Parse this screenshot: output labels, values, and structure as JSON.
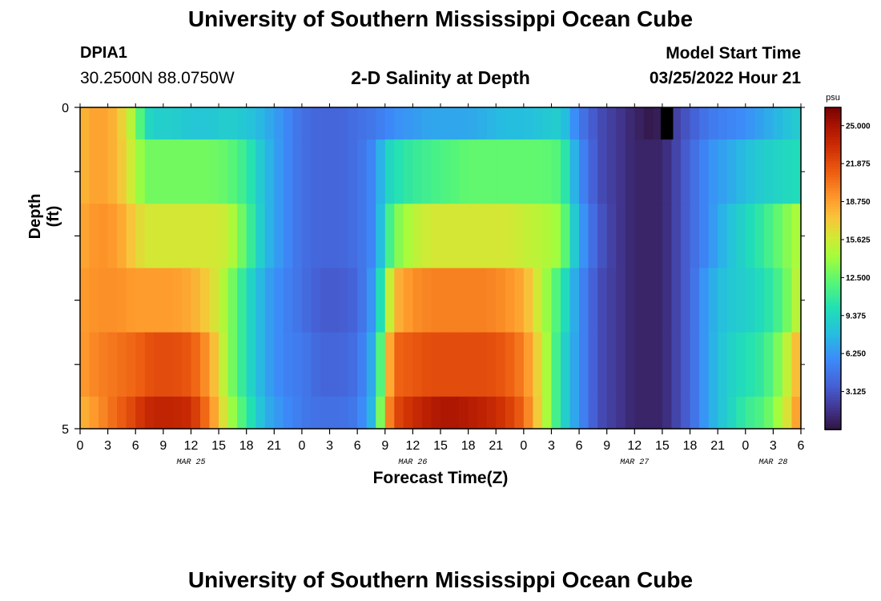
{
  "header": {
    "title": "University of Southern Mississippi Ocean Cube",
    "station_id": "DPIA1",
    "coordinates": "30.2500N  88.0750W",
    "subtitle": "2-D Salinity at Depth",
    "start_label": "Model Start Time",
    "start_value": "03/25/2022 Hour 21"
  },
  "footer": {
    "title": "University of Southern Mississippi Ocean Cube"
  },
  "chart_data": {
    "type": "heatmap",
    "title": "2-D Salinity at Depth",
    "xlabel": "Forecast Time(Z)",
    "ylabel": "Depth (ft)",
    "colorbar_unit": "psu",
    "colorbar_ticks": [
      "25.000",
      "21.875",
      "18.750",
      "15.625",
      "12.500",
      "9.375",
      "6.250",
      "3.125"
    ],
    "colorbar_range": [
      0,
      26.5
    ],
    "y_range": [
      0,
      5
    ],
    "y_ticks": [
      "0",
      "5"
    ],
    "x_tick_labels": [
      "0",
      "3",
      "6",
      "9",
      "12",
      "15",
      "18",
      "21",
      "0",
      "3",
      "6",
      "9",
      "12",
      "15",
      "18",
      "21",
      "0",
      "3",
      "6",
      "9",
      "12",
      "15",
      "18",
      "21",
      "0",
      "3",
      "6"
    ],
    "date_labels": [
      {
        "label": "MAR 25",
        "hour": 12
      },
      {
        "label": "MAR 26",
        "hour": 36
      },
      {
        "label": "MAR 27",
        "hour": 60
      },
      {
        "label": "MAR 28",
        "hour": 75
      }
    ],
    "x_hours": [
      0,
      78
    ],
    "depth_layers": [
      "0-0.5",
      "0.5-1.5",
      "1.5-2.5",
      "2.5-3.5",
      "3.5-4.5",
      "4.5-5"
    ],
    "hour_anchors": [
      0,
      2,
      4,
      6,
      7,
      8,
      10,
      12,
      14,
      16,
      18,
      20,
      22,
      24,
      26,
      28,
      30,
      32,
      33,
      34,
      36,
      38,
      40,
      42,
      44,
      46,
      48,
      50,
      52,
      54,
      56,
      58,
      60,
      62,
      63,
      64,
      66,
      68,
      70,
      72,
      74,
      76,
      78
    ],
    "salinity_by_layer": [
      [
        18,
        19,
        18,
        14,
        10,
        9,
        9,
        8.5,
        8.5,
        9,
        8.5,
        7.5,
        6,
        4.5,
        4,
        4,
        4.5,
        5,
        5.5,
        6,
        6.5,
        7,
        7,
        7,
        7.5,
        8,
        8,
        8.5,
        9,
        5,
        3,
        2,
        1,
        0.2,
        1,
        2,
        3.5,
        5,
        5.5,
        6,
        7,
        8,
        9
      ],
      [
        18,
        19,
        18,
        15,
        13,
        13,
        13,
        13,
        13,
        12.5,
        11,
        8,
        6,
        4.5,
        4,
        4,
        4.5,
        6,
        9,
        10,
        11,
        11.5,
        12,
        12.5,
        12.5,
        12.5,
        12.5,
        12.5,
        12,
        6,
        3,
        2,
        1,
        1,
        1,
        2,
        4,
        6,
        7,
        8,
        9,
        9.5,
        10
      ],
      [
        18.5,
        19.5,
        19,
        17,
        16,
        16,
        16,
        16,
        16,
        15.5,
        12,
        8,
        6,
        4.5,
        4,
        4,
        4.5,
        6,
        10,
        13,
        15,
        16,
        16,
        16,
        16,
        16,
        15.5,
        15,
        14,
        7,
        3.5,
        2,
        1,
        1,
        1,
        2,
        4,
        6,
        8,
        9.5,
        11,
        13,
        15
      ],
      [
        19,
        19.5,
        19.5,
        19,
        19,
        19,
        19,
        18.5,
        17,
        14,
        10,
        7,
        5.5,
        4.5,
        3.5,
        3.5,
        4,
        7,
        13,
        18,
        19.5,
        20,
        20,
        20,
        20,
        19.5,
        18.5,
        15,
        11,
        6,
        3,
        2,
        1,
        1,
        1,
        2,
        4,
        7,
        8.5,
        9,
        10,
        12,
        16
      ],
      [
        19,
        20,
        20.5,
        21,
        21.5,
        22,
        22,
        21.5,
        19,
        14,
        10,
        7,
        5.5,
        5,
        4,
        4,
        4.5,
        8,
        16,
        21,
        21.5,
        22,
        22,
        22,
        22,
        21.5,
        20,
        16,
        10,
        6,
        3,
        2,
        1,
        1,
        1,
        2,
        4,
        7,
        9,
        10,
        11,
        14,
        19
      ],
      [
        18,
        19.5,
        21,
        22.5,
        23.5,
        24,
        24,
        23.5,
        20,
        15,
        11,
        7.5,
        6,
        5,
        4.5,
        4.5,
        5,
        8.5,
        18,
        22,
        23.5,
        24.5,
        25,
        24.5,
        24,
        23,
        21,
        16,
        10,
        6,
        3,
        2,
        1,
        1,
        1,
        2,
        4,
        7,
        9,
        11,
        12,
        15,
        20
      ]
    ],
    "missing_cells": [
      {
        "layer": 0,
        "hour": 63
      }
    ]
  }
}
